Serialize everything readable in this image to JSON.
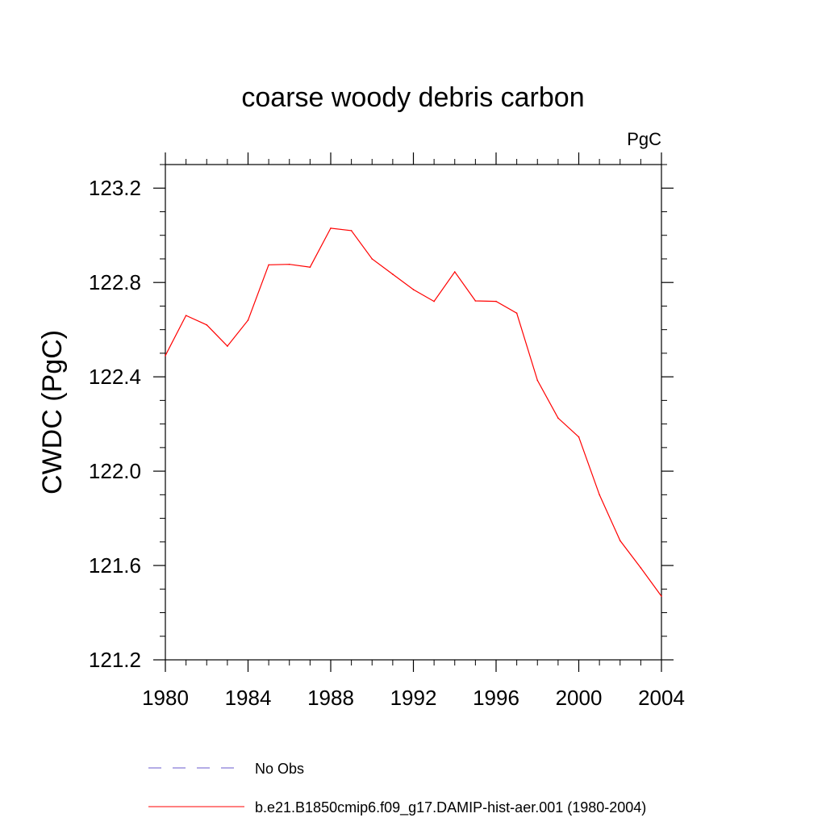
{
  "chart_data": {
    "type": "line",
    "title": "coarse woody debris carbon",
    "units_label": "PgC",
    "xlabel": "",
    "ylabel": "CWDC  (PgC)",
    "xlim": [
      1980,
      2004
    ],
    "ylim": [
      121.2,
      123.3
    ],
    "x_ticks": [
      "1980",
      "1984",
      "1988",
      "1992",
      "1996",
      "2000",
      "2004"
    ],
    "y_ticks": [
      "121.2",
      "121.6",
      "122.0",
      "122.4",
      "122.8",
      "123.2"
    ],
    "x": [
      1980,
      1981,
      1982,
      1983,
      1984,
      1985,
      1986,
      1987,
      1988,
      1989,
      1990,
      1991,
      1992,
      1993,
      1994,
      1995,
      1996,
      1997,
      1998,
      1999,
      2000,
      2001,
      2002,
      2003,
      2004
    ],
    "series": [
      {
        "name": "b.e21.B1850cmip6.f09_g17.DAMIP-hist-aer.001 (1980-2004)",
        "color": "#ff0000",
        "values": [
          122.49,
          122.66,
          122.62,
          122.53,
          122.64,
          122.875,
          122.877,
          122.865,
          123.03,
          123.02,
          122.9,
          122.835,
          122.77,
          122.72,
          122.845,
          122.722,
          122.72,
          122.67,
          122.385,
          122.225,
          122.145,
          121.9,
          121.705,
          121.59,
          121.47
        ]
      }
    ],
    "legend": {
      "placement": "bottom",
      "entries": [
        {
          "label": "No Obs",
          "color": "#6a5acd",
          "style": "dashed"
        },
        {
          "label": "b.e21.B1850cmip6.f09_g17.DAMIP-hist-aer.001 (1980-2004)",
          "color": "#ff0000",
          "style": "solid"
        }
      ]
    }
  }
}
